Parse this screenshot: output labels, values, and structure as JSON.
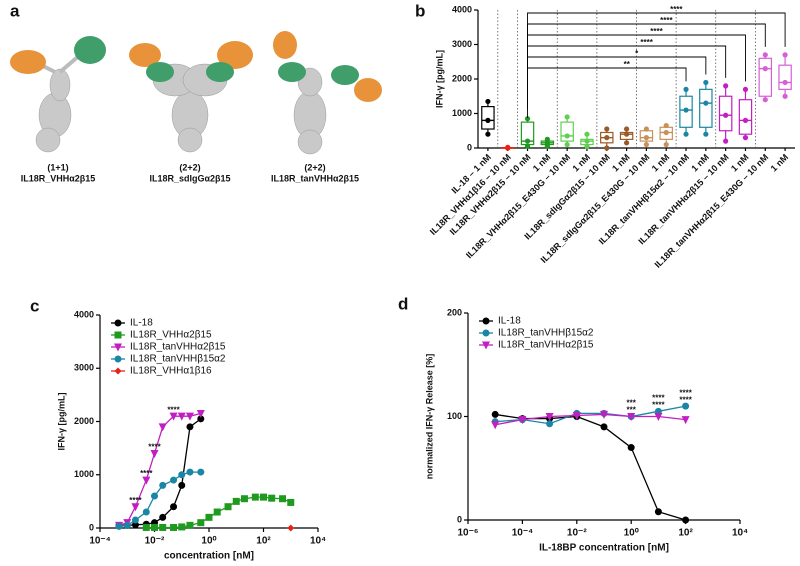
{
  "panel_a": {
    "label": "a",
    "structures": [
      {
        "valency": "(1+1)",
        "name": "IL18R_VHHα2β15"
      },
      {
        "valency": "(2+2)",
        "name": "IL18R_sdIgGα2β15"
      },
      {
        "valency": "(2+2)",
        "name": "IL18R_tanVHHα2β15"
      }
    ]
  },
  "chart_data": [
    {
      "panel": "b",
      "type": "box",
      "ylabel": "IFN-γ [pg/mL]",
      "ylim": [
        0,
        4000
      ],
      "yticks": [
        0,
        1000,
        2000,
        3000,
        4000
      ],
      "categories": [
        "IL-18 – 1 nM",
        "IL18R_VHHα1β16 – 10 nM",
        "IL18R_VHHα2β15 – 10 nM",
        "1 nM",
        "IL18R_VHHα2β15_E430G – 10 nM",
        "1 nM",
        "IL18R_sdIgGα2β15 – 10 nM",
        "1 nM",
        "IL18R_sdIgGα2β15_E430G – 10 nM",
        "1 nM",
        "IL18R_tanVHHβ15α2 – 10 nM",
        "1 nM",
        "IL18R_tanVHHα2β15 – 10 nM",
        "1 nM",
        "IL18R_tanVHHα2β15_E430G – 10 nM",
        "1 nM"
      ],
      "colors": [
        "#000000",
        "#e8221a",
        "#1e9a1e",
        "#1e9a1e",
        "#5fcf4f",
        "#5fcf4f",
        "#9a5a28",
        "#9a5a28",
        "#c8915a",
        "#c8915a",
        "#1a86a6",
        "#1a86a6",
        "#c21fc2",
        "#c21fc2",
        "#d65fd6",
        "#d65fd6"
      ],
      "boxes": [
        {
          "min": 400,
          "q1": 550,
          "median": 800,
          "q3": 1200,
          "max": 1350
        },
        {
          "min": 0,
          "q1": 0,
          "median": 0,
          "q3": 10,
          "max": 20
        },
        {
          "min": 50,
          "q1": 100,
          "median": 200,
          "q3": 750,
          "max": 850
        },
        {
          "min": 50,
          "q1": 100,
          "median": 150,
          "q3": 200,
          "max": 250
        },
        {
          "min": 100,
          "q1": 200,
          "median": 350,
          "q3": 750,
          "max": 900
        },
        {
          "min": 50,
          "q1": 100,
          "median": 200,
          "q3": 250,
          "max": 400
        },
        {
          "min": 0,
          "q1": 150,
          "median": 300,
          "q3": 450,
          "max": 550
        },
        {
          "min": 150,
          "q1": 250,
          "median": 400,
          "q3": 450,
          "max": 550
        },
        {
          "min": 100,
          "q1": 200,
          "median": 300,
          "q3": 500,
          "max": 550
        },
        {
          "min": 100,
          "q1": 250,
          "median": 450,
          "q3": 600,
          "max": 650
        },
        {
          "min": 400,
          "q1": 600,
          "median": 1100,
          "q3": 1500,
          "max": 1700
        },
        {
          "min": 400,
          "q1": 600,
          "median": 1300,
          "q3": 1700,
          "max": 1900
        },
        {
          "min": 200,
          "q1": 500,
          "median": 950,
          "q3": 1500,
          "max": 1800
        },
        {
          "min": 300,
          "q1": 400,
          "median": 800,
          "q3": 1400,
          "max": 1700
        },
        {
          "min": 1400,
          "q1": 1500,
          "median": 2300,
          "q3": 2600,
          "max": 2700
        },
        {
          "min": 1500,
          "q1": 1700,
          "median": 1900,
          "q3": 2400,
          "max": 2700
        }
      ],
      "comparisons": [
        {
          "label": "**",
          "color": "#2a7fc0",
          "from": 2,
          "to": 10
        },
        {
          "label": "*",
          "color": "#2a7fc0",
          "from": 2,
          "to": 11
        },
        {
          "label": "****",
          "color": "#c21fc2",
          "from": 2,
          "to": 12
        },
        {
          "label": "****",
          "color": "#c21fc2",
          "from": 2,
          "to": 13
        },
        {
          "label": "****",
          "color": "#c21fc2",
          "from": 2,
          "to": 14
        },
        {
          "label": "****",
          "color": "#c21fc2",
          "from": 2,
          "to": 15
        }
      ]
    },
    {
      "panel": "c",
      "type": "line",
      "xscale": "log",
      "xlabel": "concentration [nM]",
      "ylabel": "IFN-γ [pg/mL]",
      "xlim": [
        0.0001,
        10000
      ],
      "xticks": [
        {
          "value": 0.0001,
          "label": "10⁻⁴"
        },
        {
          "value": 0.01,
          "label": "10⁻²"
        },
        {
          "value": 1,
          "label": "10⁰"
        },
        {
          "value": 100,
          "label": "10²"
        },
        {
          "value": 10000,
          "label": "10⁴"
        }
      ],
      "ylim": [
        0,
        4000
      ],
      "yticks": [
        0,
        1000,
        2000,
        3000,
        4000
      ],
      "legend": "upper left",
      "series": [
        {
          "name": "IL-18",
          "color": "#000000",
          "marker": "circle",
          "x": [
            0.0005,
            0.001,
            0.002,
            0.005,
            0.01,
            0.02,
            0.05,
            0.1,
            0.2,
            0.5
          ],
          "values": [
            50,
            50,
            60,
            70,
            100,
            200,
            400,
            800,
            1900,
            2050
          ]
        },
        {
          "name": "IL18R_VHHα2β15",
          "color": "#1e9a1e",
          "marker": "square",
          "x": [
            0.005,
            0.01,
            0.02,
            0.05,
            0.1,
            0.2,
            0.5,
            1,
            2,
            5,
            10,
            20,
            50,
            100,
            200,
            500,
            1000
          ],
          "values": [
            10,
            10,
            10,
            10,
            20,
            50,
            100,
            200,
            300,
            400,
            500,
            550,
            580,
            580,
            560,
            550,
            480
          ]
        },
        {
          "name": "IL18R_tanVHHα2β15",
          "color": "#c21fc2",
          "marker": "triangle-down",
          "x": [
            0.0005,
            0.001,
            0.002,
            0.005,
            0.01,
            0.02,
            0.05,
            0.1,
            0.2,
            0.5
          ],
          "values": [
            50,
            100,
            400,
            900,
            1400,
            1900,
            2100,
            2100,
            2100,
            2150
          ]
        },
        {
          "name": "IL18R_tanVHHβ15α2",
          "color": "#1a86a6",
          "marker": "circle",
          "x": [
            0.0005,
            0.001,
            0.002,
            0.005,
            0.01,
            0.02,
            0.05,
            0.1,
            0.2,
            0.5
          ],
          "values": [
            30,
            50,
            150,
            300,
            600,
            800,
            900,
            1000,
            1050,
            1050
          ]
        },
        {
          "name": "IL18R_VHHα1β16",
          "color": "#e8221a",
          "marker": "diamond",
          "x": [
            1000
          ],
          "values": [
            0
          ]
        }
      ],
      "annotations": [
        {
          "text": "****",
          "color": "#c21fc2",
          "series": 2,
          "index": 2
        },
        {
          "text": "****",
          "color": "#c21fc2",
          "series": 2,
          "index": 3
        },
        {
          "text": "****",
          "color": "#c21fc2",
          "series": 2,
          "index": 4
        },
        {
          "text": "****",
          "color": "#c21fc2",
          "series": 2,
          "index": 6
        }
      ]
    },
    {
      "panel": "d",
      "type": "line",
      "xscale": "log",
      "xlabel": "IL-18BP concentration [nM]",
      "ylabel": "normalized IFN-γ Release [%]",
      "xlim": [
        1e-06,
        10000
      ],
      "xticks": [
        {
          "value": 1e-06,
          "label": "10⁻⁶"
        },
        {
          "value": 0.0001,
          "label": "10⁻⁴"
        },
        {
          "value": 0.01,
          "label": "10⁻²"
        },
        {
          "value": 1,
          "label": "10⁰"
        },
        {
          "value": 100,
          "label": "10²"
        },
        {
          "value": 10000,
          "label": "10⁴"
        }
      ],
      "ylim": [
        0,
        200
      ],
      "yticks": [
        0,
        100,
        200
      ],
      "legend": "upper left",
      "series": [
        {
          "name": "IL-18",
          "color": "#000000",
          "marker": "circle",
          "x": [
            1e-05,
            0.0001,
            0.001,
            0.01,
            0.1,
            1,
            10,
            100
          ],
          "values": [
            102,
            98,
            98,
            100,
            90,
            70,
            8,
            0
          ]
        },
        {
          "name": "IL18R_tanVHHβ15α2",
          "color": "#1a86a6",
          "marker": "circle",
          "x": [
            1e-05,
            0.0001,
            0.001,
            0.01,
            0.1,
            1,
            10,
            100
          ],
          "values": [
            95,
            97,
            93,
            103,
            103,
            100,
            105,
            110
          ]
        },
        {
          "name": "IL18R_tanVHHα2β15",
          "color": "#c21fc2",
          "marker": "triangle-down",
          "x": [
            1e-05,
            0.0001,
            0.001,
            0.01,
            0.1,
            1,
            10,
            100
          ],
          "values": [
            92,
            97,
            100,
            101,
            102,
            100,
            100,
            97
          ]
        }
      ],
      "annotations": [
        {
          "text": "***",
          "color": "#c21fc2",
          "series": 2,
          "index": 5
        },
        {
          "text": "***",
          "color": "#1a86a6",
          "series": 1,
          "index": 5
        },
        {
          "text": "****",
          "color": "#c21fc2",
          "series": 2,
          "index": 6
        },
        {
          "text": "****",
          "color": "#1a86a6",
          "series": 1,
          "index": 6
        },
        {
          "text": "****",
          "color": "#c21fc2",
          "series": 2,
          "index": 7
        },
        {
          "text": "****",
          "color": "#1a86a6",
          "series": 1,
          "index": 7
        }
      ]
    }
  ]
}
